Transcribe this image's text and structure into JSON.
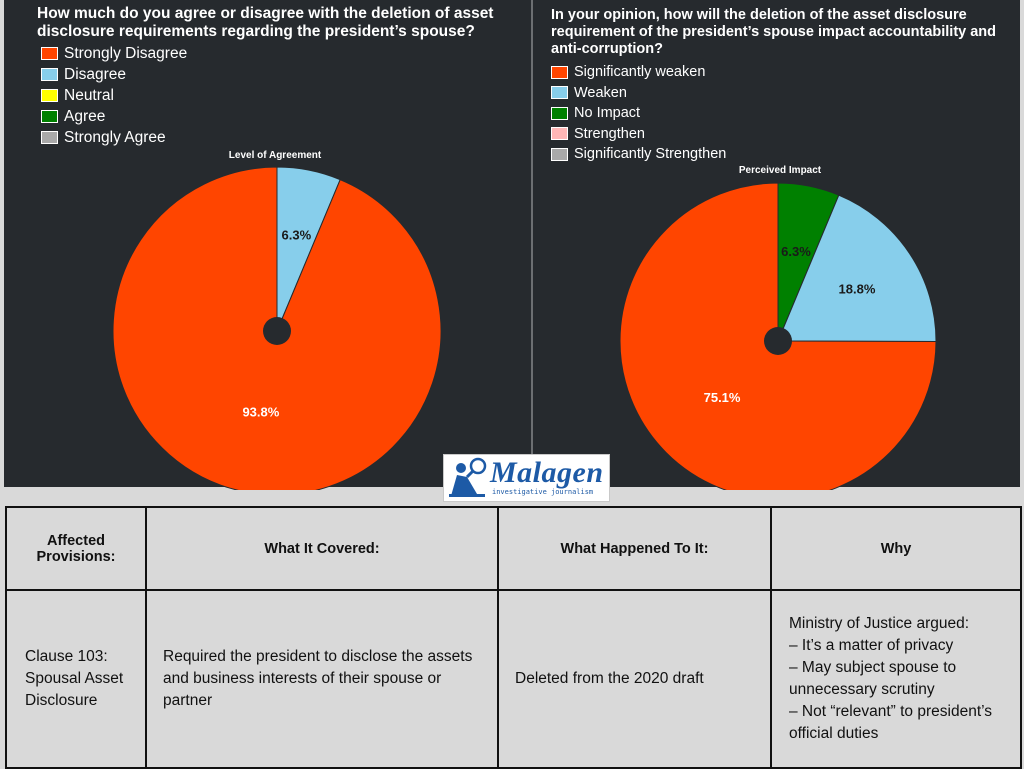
{
  "colors": {
    "panel_bg": "#262a2e",
    "strongly_disagree": "#ff4500",
    "disagree": "#87ceeb",
    "neutral": "#ffff00",
    "agree": "#008000",
    "strongly_agree": "#a9a9a9",
    "strengthen": "#ffb6b6"
  },
  "chart_data": [
    {
      "type": "pie",
      "question": "How much do you agree or disagree with the deletion of asset disclosure requirements regarding the president’s spouse?",
      "title": "Level of Agreement",
      "legend": [
        "Strongly Disagree",
        "Disagree",
        "Neutral",
        "Agree",
        "Strongly Agree"
      ],
      "legend_colors": [
        "#ff4500",
        "#87ceeb",
        "#ffff00",
        "#008000",
        "#a9a9a9"
      ],
      "slices": [
        {
          "label": "Disagree",
          "value": 6.3,
          "text": "6.3%",
          "color": "#87ceeb"
        },
        {
          "label": "Strongly Disagree",
          "value": 93.8,
          "text": "93.8%",
          "color": "#ff4500"
        }
      ]
    },
    {
      "type": "pie",
      "question": "In your opinion, how will the deletion of the asset disclosure requirement of the president’s spouse impact accountability and anti-corruption?",
      "title": "Perceived Impact",
      "legend": [
        "Significantly weaken",
        "Weaken",
        "No Impact",
        "Strengthen",
        "Significantly Strengthen"
      ],
      "legend_colors": [
        "#ff4500",
        "#87ceeb",
        "#008000",
        "#ffb6b6",
        "#a9a9a9"
      ],
      "slices": [
        {
          "label": "No Impact",
          "value": 6.3,
          "text": "6.3%",
          "color": "#008000"
        },
        {
          "label": "Weaken",
          "value": 18.8,
          "text": "18.8%",
          "color": "#87ceeb"
        },
        {
          "label": "Significantly weaken",
          "value": 75.1,
          "text": "75.1%",
          "color": "#ff4500"
        }
      ]
    }
  ],
  "logo": {
    "word": "Malagen",
    "tagline": "investigative journalism"
  },
  "table": {
    "headers": [
      "Affected Provisions:",
      "What It Covered:",
      "What Happened To It:",
      "Why"
    ],
    "row": {
      "provision": "Clause 103: Spousal Asset Disclosure",
      "covered": "Required the president to disclose the assets and business interests of their spouse or partner",
      "happened": "Deleted from the 2020 draft",
      "why_lines": [
        "Ministry of Justice argued:",
        "– It’s a matter of privacy",
        "– May subject spouse to unnecessary scrutiny",
        "– Not “relevant” to president’s official duties"
      ]
    }
  }
}
